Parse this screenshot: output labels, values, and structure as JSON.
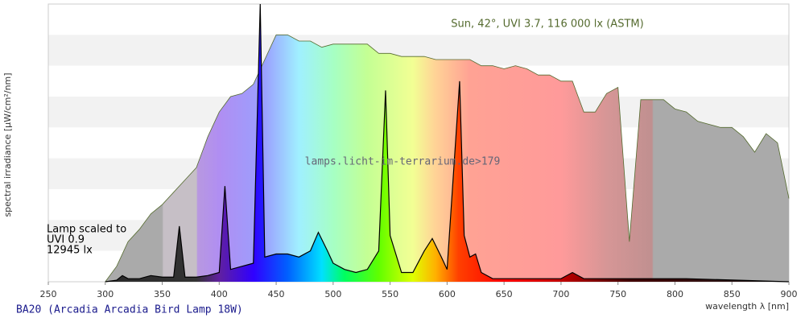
{
  "chart_data": {
    "type": "spectrum",
    "title": "BA20 (Arcadia Arcadia Bird Lamp 18W)",
    "x_label": "wavelength λ [nm]",
    "y_label": "spectral irradiance [µW/cm²/nm]",
    "watermark": "lamps.licht-im-terrarium.de>179",
    "lamp_notes": [
      "Lamp scaled to",
      "UVI 0.9",
      "12945 lx"
    ],
    "xlim": [
      250,
      900
    ],
    "xticks": [
      250,
      300,
      350,
      400,
      450,
      500,
      550,
      600,
      650,
      700,
      750,
      800,
      850,
      900
    ],
    "ylim": [
      0,
      90
    ],
    "series": [
      {
        "name": "Sun, 42°, UVI 3.7, 116 000 lx (ASTM)",
        "color": "#556b2f",
        "x": [
          300,
          310,
          320,
          330,
          340,
          350,
          360,
          370,
          380,
          390,
          400,
          410,
          420,
          430,
          440,
          450,
          460,
          470,
          480,
          490,
          500,
          510,
          520,
          530,
          540,
          550,
          560,
          570,
          580,
          590,
          600,
          610,
          620,
          630,
          640,
          650,
          660,
          670,
          680,
          690,
          700,
          710,
          720,
          730,
          740,
          750,
          760,
          770,
          780,
          790,
          800,
          810,
          820,
          830,
          840,
          850,
          860,
          870,
          880,
          890,
          900
        ],
        "values": [
          0,
          5,
          13,
          17,
          22,
          25,
          29,
          33,
          37,
          47,
          55,
          60,
          61,
          64,
          72,
          80,
          80,
          78,
          78,
          76,
          77,
          77,
          77,
          77,
          74,
          74,
          73,
          73,
          73,
          72,
          72,
          72,
          72,
          70,
          70,
          69,
          70,
          69,
          67,
          67,
          65,
          65,
          55,
          55,
          61,
          63,
          13,
          59,
          59,
          59,
          56,
          55,
          52,
          51,
          50,
          50,
          47,
          42,
          48,
          45,
          27
        ]
      },
      {
        "color": "#000000",
        "x": [
          300,
          310,
          315,
          320,
          330,
          340,
          350,
          360,
          365,
          370,
          380,
          390,
          400,
          405,
          410,
          420,
          430,
          436,
          440,
          450,
          460,
          470,
          480,
          487,
          495,
          500,
          510,
          520,
          530,
          540,
          546,
          550,
          560,
          570,
          580,
          587,
          595,
          600,
          611,
          615,
          620,
          625,
          630,
          640,
          650,
          660,
          680,
          690,
          700,
          710,
          720,
          760,
          770,
          810,
          900
        ],
        "values": [
          0,
          0.5,
          2,
          1,
          1,
          2,
          1.5,
          1.5,
          18,
          1.5,
          1.5,
          2,
          3,
          31,
          4,
          5,
          6,
          90,
          8,
          9,
          9,
          8,
          10,
          16,
          10,
          6,
          4,
          3,
          4,
          10,
          62,
          15,
          3,
          3,
          10,
          14,
          8,
          4,
          65,
          15,
          8,
          9,
          3,
          1,
          1,
          1,
          1,
          1,
          1,
          3,
          1,
          1,
          1,
          1,
          0
        ]
      }
    ]
  }
}
